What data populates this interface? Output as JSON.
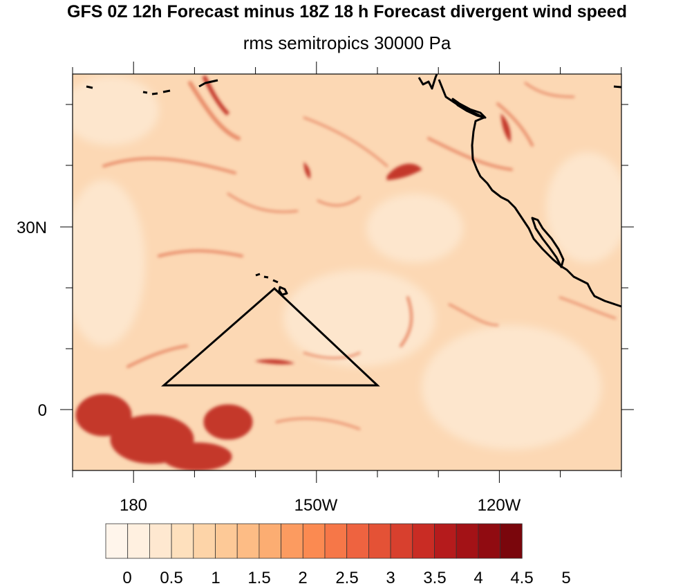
{
  "title": "GFS 0Z 12h Forecast minus 18Z 18 h Forecast divergent wind speed",
  "subtitle": "rms semitropics 30000 Pa",
  "map": {
    "lat_labels": [
      "30N",
      "0"
    ],
    "lon_labels": [
      "180",
      "150W",
      "120W"
    ],
    "overlay_shape": "triangle"
  },
  "colorbar": {
    "labels": [
      "0",
      "0.5",
      "1",
      "1.5",
      "2",
      "2.5",
      "3",
      "3.5",
      "4",
      "4.5",
      "5"
    ],
    "colors": [
      "#fff5eb",
      "#fff0e0",
      "#fee8d0",
      "#fee0bd",
      "#fdd4a8",
      "#fdc997",
      "#fdbc85",
      "#fcad72",
      "#fc9b60",
      "#fb8a51",
      "#f67748",
      "#ee6340",
      "#e45236",
      "#d8402e",
      "#c92c24",
      "#b51b1c",
      "#a31216",
      "#900b11",
      "#7a060c"
    ]
  },
  "map_colors": {
    "background": "#fcd8b4",
    "light": "#fde6cd",
    "streak": "#e88a68",
    "strong": "#c4382c",
    "coast": "#000000"
  }
}
